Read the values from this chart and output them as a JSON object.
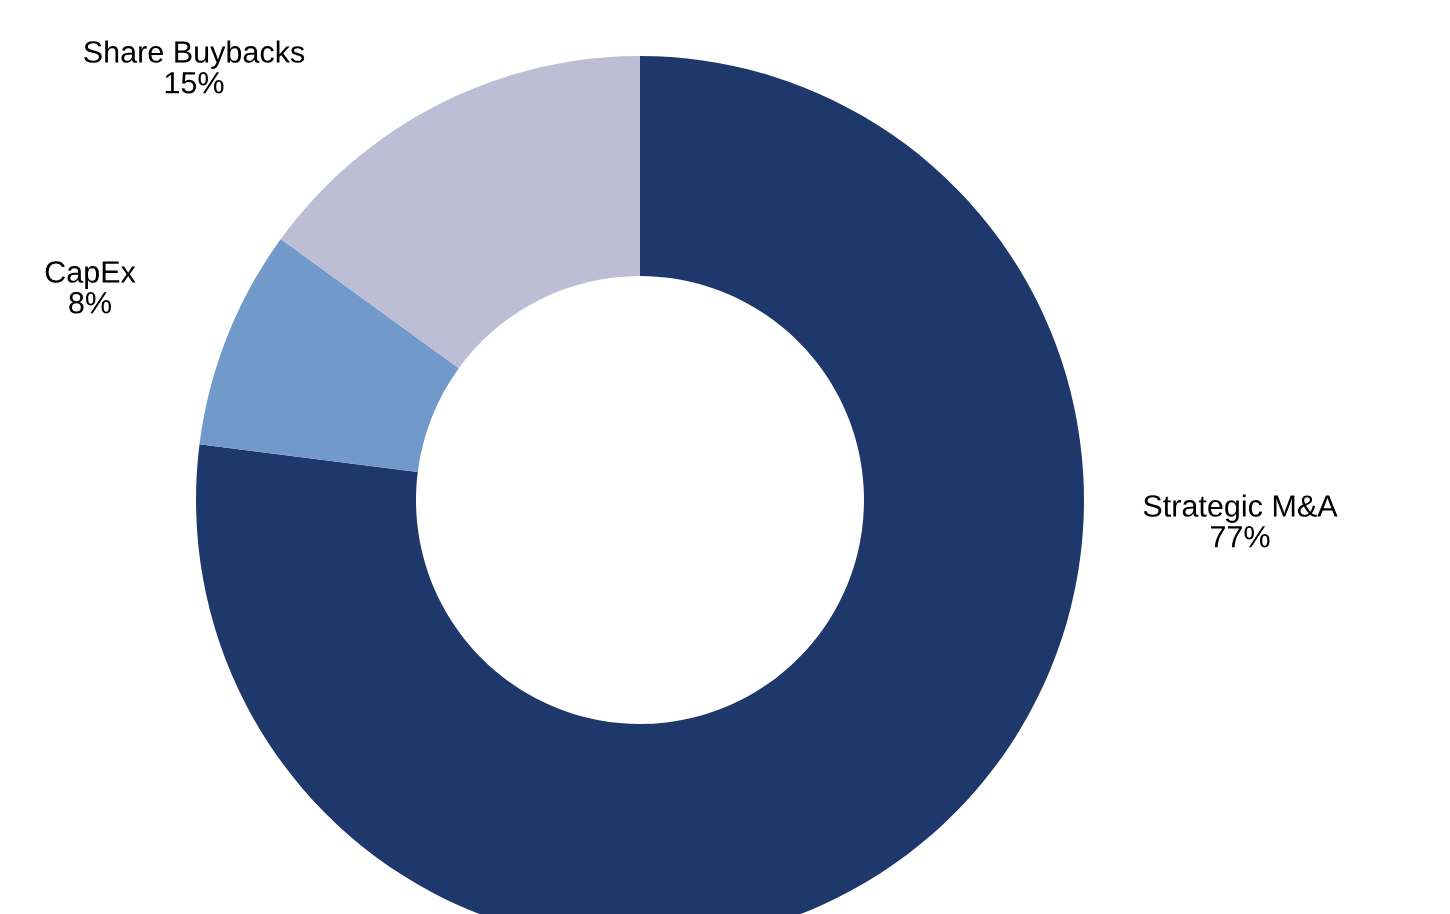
{
  "chart_data": {
    "type": "donut",
    "categories": [
      "Strategic M&A",
      "CapEx",
      "Share Buybacks"
    ],
    "values": [
      77,
      8,
      15
    ],
    "colors": [
      "#1f386b",
      "#7199c9",
      "#bdbdd6"
    ],
    "value_labels": [
      "77%",
      "8%",
      "15%"
    ]
  }
}
